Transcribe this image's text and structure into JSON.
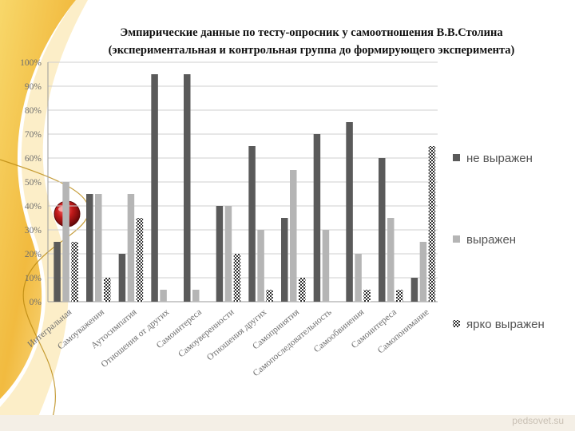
{
  "title_lines": [
    "Эмпирические данные по тесту-опросник у самоотношения В.В.Столина",
    "(экспериментальная и контрольная группа до   формирующего эксперимента)"
  ],
  "watermark": "pedsovet.su",
  "colors": {
    "ne_vyrazhen": "#5a5a5a",
    "vyrazhen": "#b5b5b5",
    "yarko_vyrazhen": "#3a3a3a",
    "background_accent": "#f2c23a",
    "orb": "#b01818"
  },
  "chart_data": {
    "type": "bar",
    "title": "Эмпирические данные по тесту-опросник у самоотношения В.В.Столина (экспериментальная и контрольная группа до   формирующего эксперимента)",
    "xlabel": "",
    "ylabel": "",
    "ylim": [
      0,
      100
    ],
    "y_ticks": [
      "0%",
      "10%",
      "20%",
      "30%",
      "40%",
      "50%",
      "60%",
      "70%",
      "80%",
      "90%",
      "100%"
    ],
    "grid": true,
    "legend_position": "right",
    "categories": [
      "Интегральная",
      "Самоуважения",
      "Аутосимпатия",
      "Отношения от других",
      "Самоинтереса",
      "Самоуверенности",
      "Отношения других",
      "Самопринятия",
      "Самопоследовательность",
      "Самообвинения",
      "Самоинтереса",
      "Самопонимание"
    ],
    "series": [
      {
        "name": "не выражен",
        "pattern": "solid-dark",
        "values": [
          25,
          45,
          20,
          95,
          95,
          40,
          65,
          35,
          70,
          75,
          60,
          10
        ]
      },
      {
        "name": "выражен",
        "pattern": "solid-light",
        "values": [
          50,
          45,
          45,
          5,
          5,
          40,
          30,
          55,
          30,
          20,
          35,
          25
        ]
      },
      {
        "name": "ярко выражен",
        "pattern": "checkered",
        "values": [
          25,
          10,
          35,
          0,
          0,
          20,
          5,
          10,
          0,
          5,
          5,
          65
        ]
      }
    ]
  }
}
